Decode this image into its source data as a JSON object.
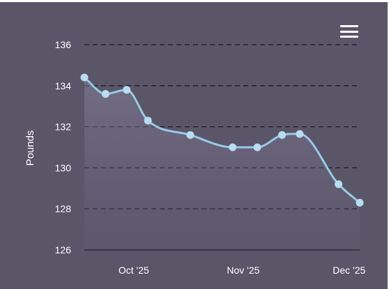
{
  "menu": {
    "icon": "hamburger-menu-icon"
  },
  "colors": {
    "background": "#5b5568",
    "line": "#9ac9e6",
    "marker": "#b9dcf2",
    "grid": "#1d1b24",
    "text": "#ffffff"
  },
  "chart_data": {
    "type": "area",
    "title": "",
    "xlabel": "",
    "ylabel": "Pounds",
    "x_tick_labels": [
      "Oct '25",
      "Nov '25",
      "Dec '25"
    ],
    "x_tick_dates": [
      "2025-10-01",
      "2025-11-01",
      "2025-12-01"
    ],
    "ylim": [
      126,
      136
    ],
    "y_ticks": [
      126,
      128,
      130,
      132,
      134,
      136
    ],
    "grid": "horizontal dashed",
    "legend": "none",
    "series": [
      {
        "name": "",
        "x": [
          "2025-09-17",
          "2025-09-23",
          "2025-09-29",
          "2025-10-05",
          "2025-10-17",
          "2025-10-29",
          "2025-11-05",
          "2025-11-12",
          "2025-11-17",
          "2025-11-28",
          "2025-12-04"
        ],
        "values": [
          134.4,
          133.6,
          133.8,
          132.3,
          131.6,
          131.0,
          131.0,
          131.6,
          131.65,
          129.2,
          128.3
        ]
      }
    ]
  }
}
